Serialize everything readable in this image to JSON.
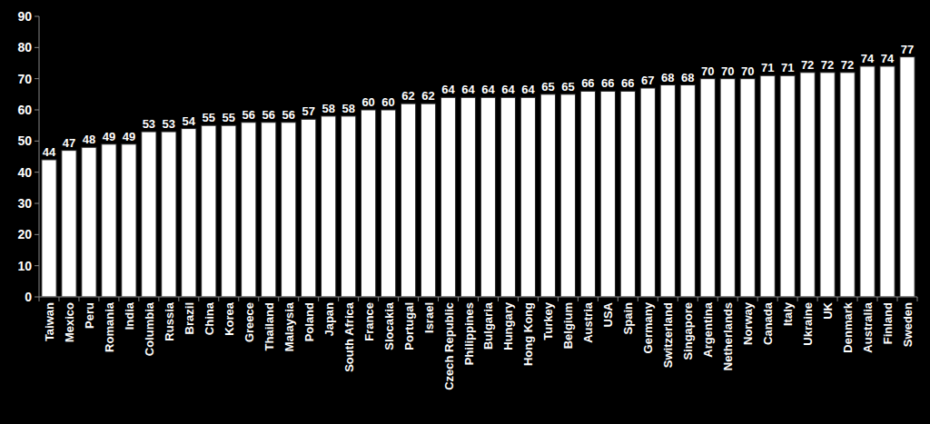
{
  "chart_data": {
    "type": "bar",
    "categories": [
      "Taiwan",
      "Mexico",
      "Peru",
      "Romania",
      "India",
      "Columbia",
      "Russia",
      "Brazil",
      "China",
      "Korea",
      "Greece",
      "Thailand",
      "Malaysia",
      "Poland",
      "Japan",
      "South Africa",
      "France",
      "Slocakia",
      "Portugal",
      "Israel",
      "Czech Republic",
      "Philippines",
      "Bulgaria",
      "Hungary",
      "Hong Kong",
      "Turkey",
      "Belgium",
      "Austria",
      "USA",
      "Spain",
      "Germany",
      "Switzerland",
      "Singapore",
      "Argentina",
      "Netherlands",
      "Norway",
      "Canada",
      "Italy",
      "Ukraine",
      "UK",
      "Denmark",
      "Australia",
      "Finland",
      "Sweden"
    ],
    "values": [
      44,
      47,
      48,
      49,
      49,
      53,
      53,
      54,
      55,
      55,
      56,
      56,
      56,
      57,
      58,
      58,
      60,
      60,
      62,
      62,
      64,
      64,
      64,
      64,
      64,
      65,
      65,
      66,
      66,
      66,
      67,
      68,
      68,
      70,
      70,
      70,
      71,
      71,
      72,
      72,
      72,
      74,
      74,
      77
    ],
    "color": "#ffffff",
    "ylim": [
      0,
      90
    ],
    "yticks": [
      0,
      10,
      20,
      30,
      40,
      50,
      60,
      70,
      80,
      90
    ],
    "grid": false,
    "data_labels": true
  }
}
